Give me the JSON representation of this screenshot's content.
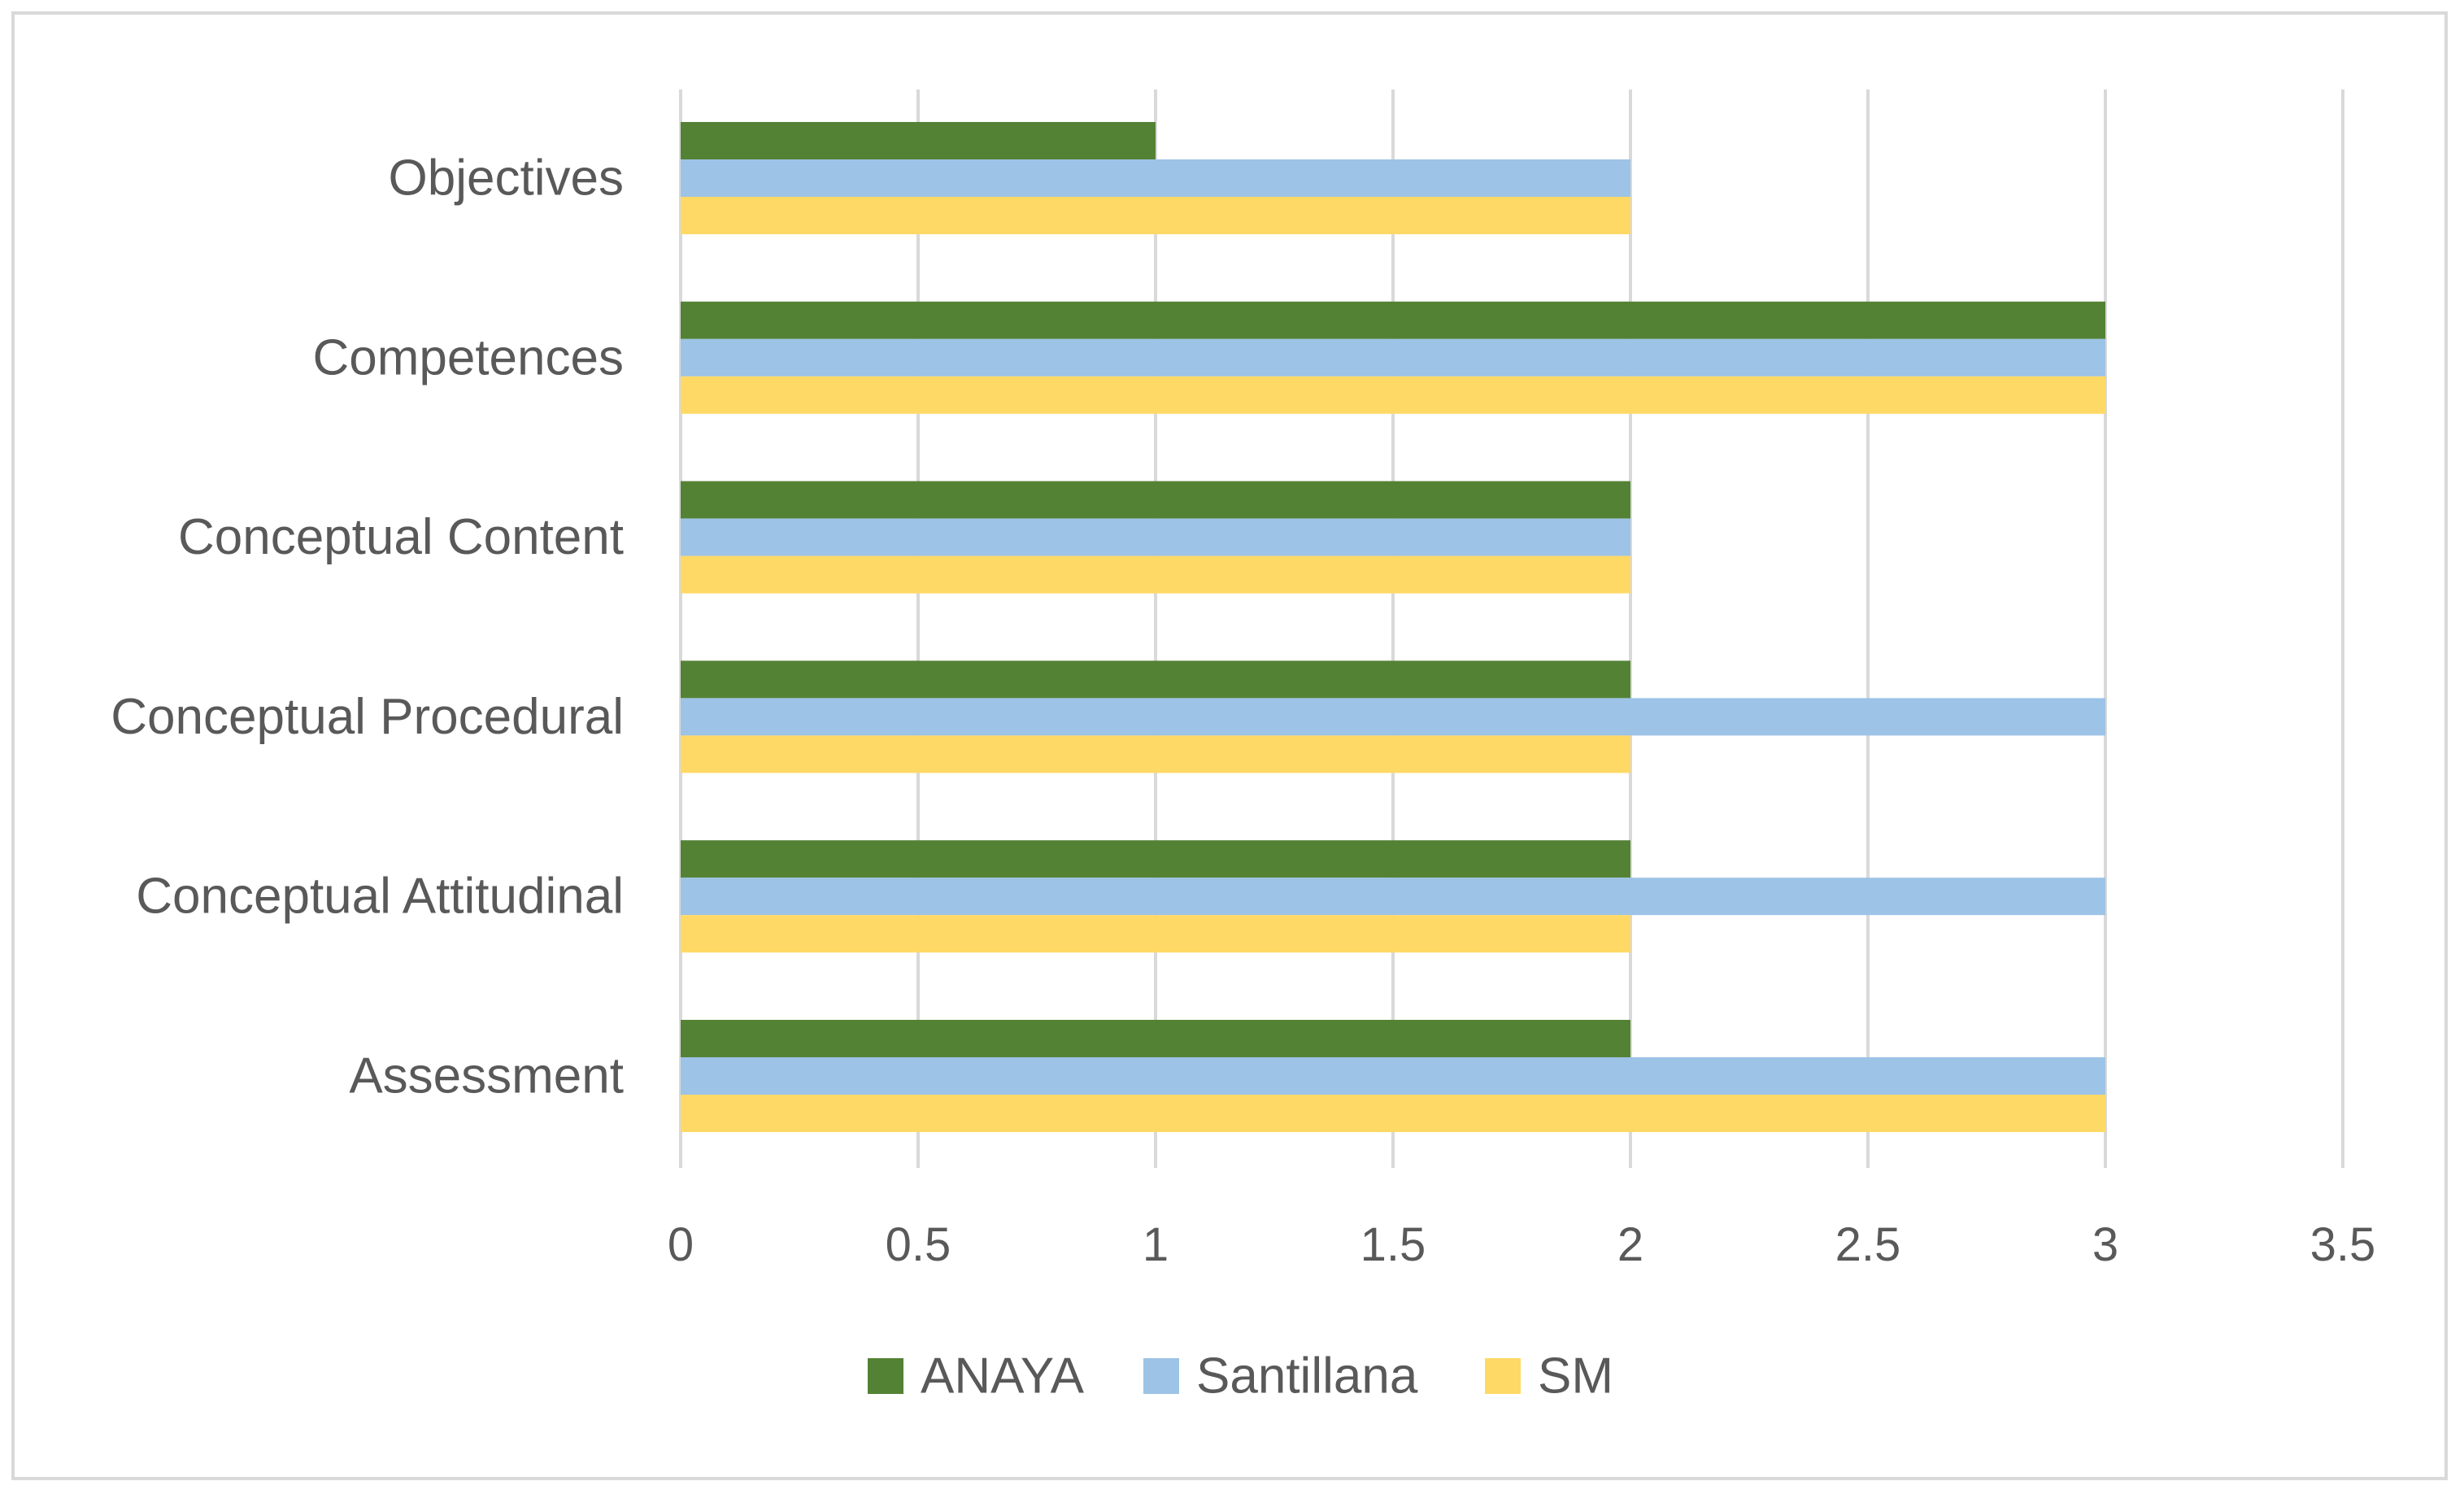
{
  "chart_data": {
    "type": "bar",
    "orientation": "horizontal",
    "title": "",
    "xlabel": "",
    "ylabel": "",
    "categories": [
      "Objectives",
      "Competences",
      "Conceptual Content",
      "Conceptual Procedural",
      "Conceptual Attitudinal",
      "Assessment"
    ],
    "series": [
      {
        "name": "ANAYA",
        "color": "#548235",
        "values": [
          1,
          3,
          2,
          2,
          2,
          2
        ]
      },
      {
        "name": "Santillana",
        "color": "#9dc3e6",
        "values": [
          2,
          3,
          2,
          3,
          3,
          3
        ]
      },
      {
        "name": "SM",
        "color": "#ffd966",
        "values": [
          2,
          3,
          2,
          2,
          2,
          3
        ]
      }
    ],
    "xlim": [
      0,
      3.5
    ],
    "xticks": [
      "0",
      "0.5",
      "1",
      "1.5",
      "2",
      "2.5",
      "3",
      "3.5"
    ],
    "grid": true,
    "legend_position": "bottom"
  }
}
